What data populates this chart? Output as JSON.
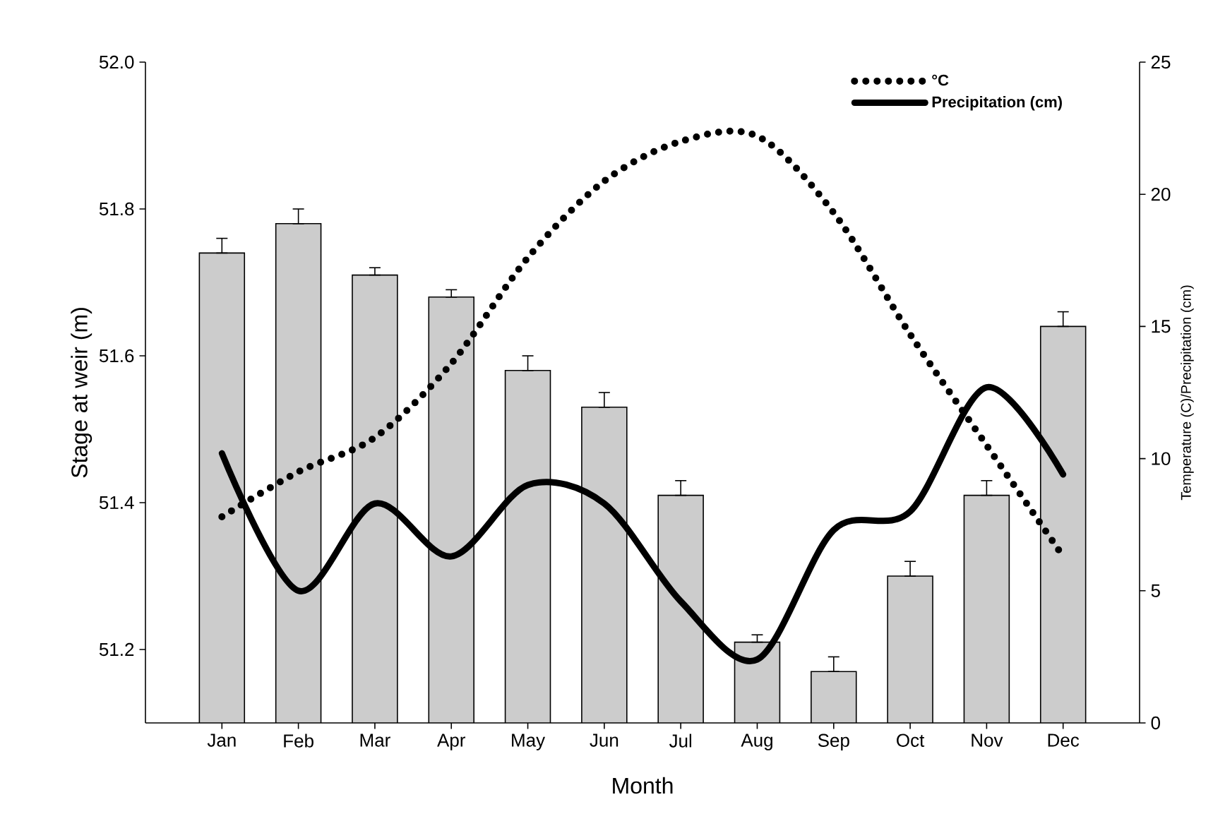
{
  "chart_data": {
    "type": "bar",
    "xlabel": "Month",
    "ylabel": "Stage at weir (m)",
    "y2label": "Temperature (C)/Precipitation (cm)",
    "categories": [
      "Jan",
      "Feb",
      "Mar",
      "Apr",
      "May",
      "Jun",
      "Jul",
      "Aug",
      "Sep",
      "Oct",
      "Nov",
      "Dec"
    ],
    "series": [
      {
        "color": "#cccccc",
        "values": [
          51.74,
          51.78,
          51.71,
          51.68,
          51.58,
          51.53,
          51.41,
          51.21,
          51.17,
          51.3,
          51.41,
          51.64
        ],
        "errors": [
          [
            51.74,
            51.76
          ],
          [
            51.78,
            51.8
          ],
          [
            51.71,
            51.72
          ],
          [
            51.68,
            51.69
          ],
          [
            51.58,
            51.6
          ],
          [
            51.53,
            51.55
          ],
          [
            51.41,
            51.43
          ],
          [
            51.21,
            51.22
          ],
          [
            51.17,
            51.19
          ],
          [
            51.3,
            51.32
          ],
          [
            51.41,
            51.43
          ],
          [
            51.64,
            51.66
          ]
        ]
      },
      {
        "type": "line",
        "name": "°C",
        "axis": "y2",
        "color": "#000000",
        "line_style": "dotted",
        "values": [
          7.8,
          9.5,
          10.8,
          13.6,
          17.6,
          20.5,
          22.0,
          22.2,
          19.3,
          14.7,
          10.5,
          6.3
        ]
      },
      {
        "type": "line",
        "name": "Precipitation (cm)",
        "axis": "y2",
        "color": "#000000",
        "line_style": "solid",
        "values": [
          10.2,
          5.0,
          8.3,
          6.3,
          9.0,
          8.3,
          4.6,
          2.4,
          7.3,
          8.0,
          12.7,
          9.4
        ]
      }
    ],
    "ylim": [
      51.1,
      52.0
    ],
    "yticks": [
      51.2,
      51.4,
      51.6,
      51.8,
      {
        "value": 52.0,
        "label": "52.0"
      }
    ],
    "y2lim": [
      0,
      25
    ],
    "y2ticks": [
      0,
      5,
      10,
      15,
      20,
      25
    ],
    "legend": "top right"
  }
}
